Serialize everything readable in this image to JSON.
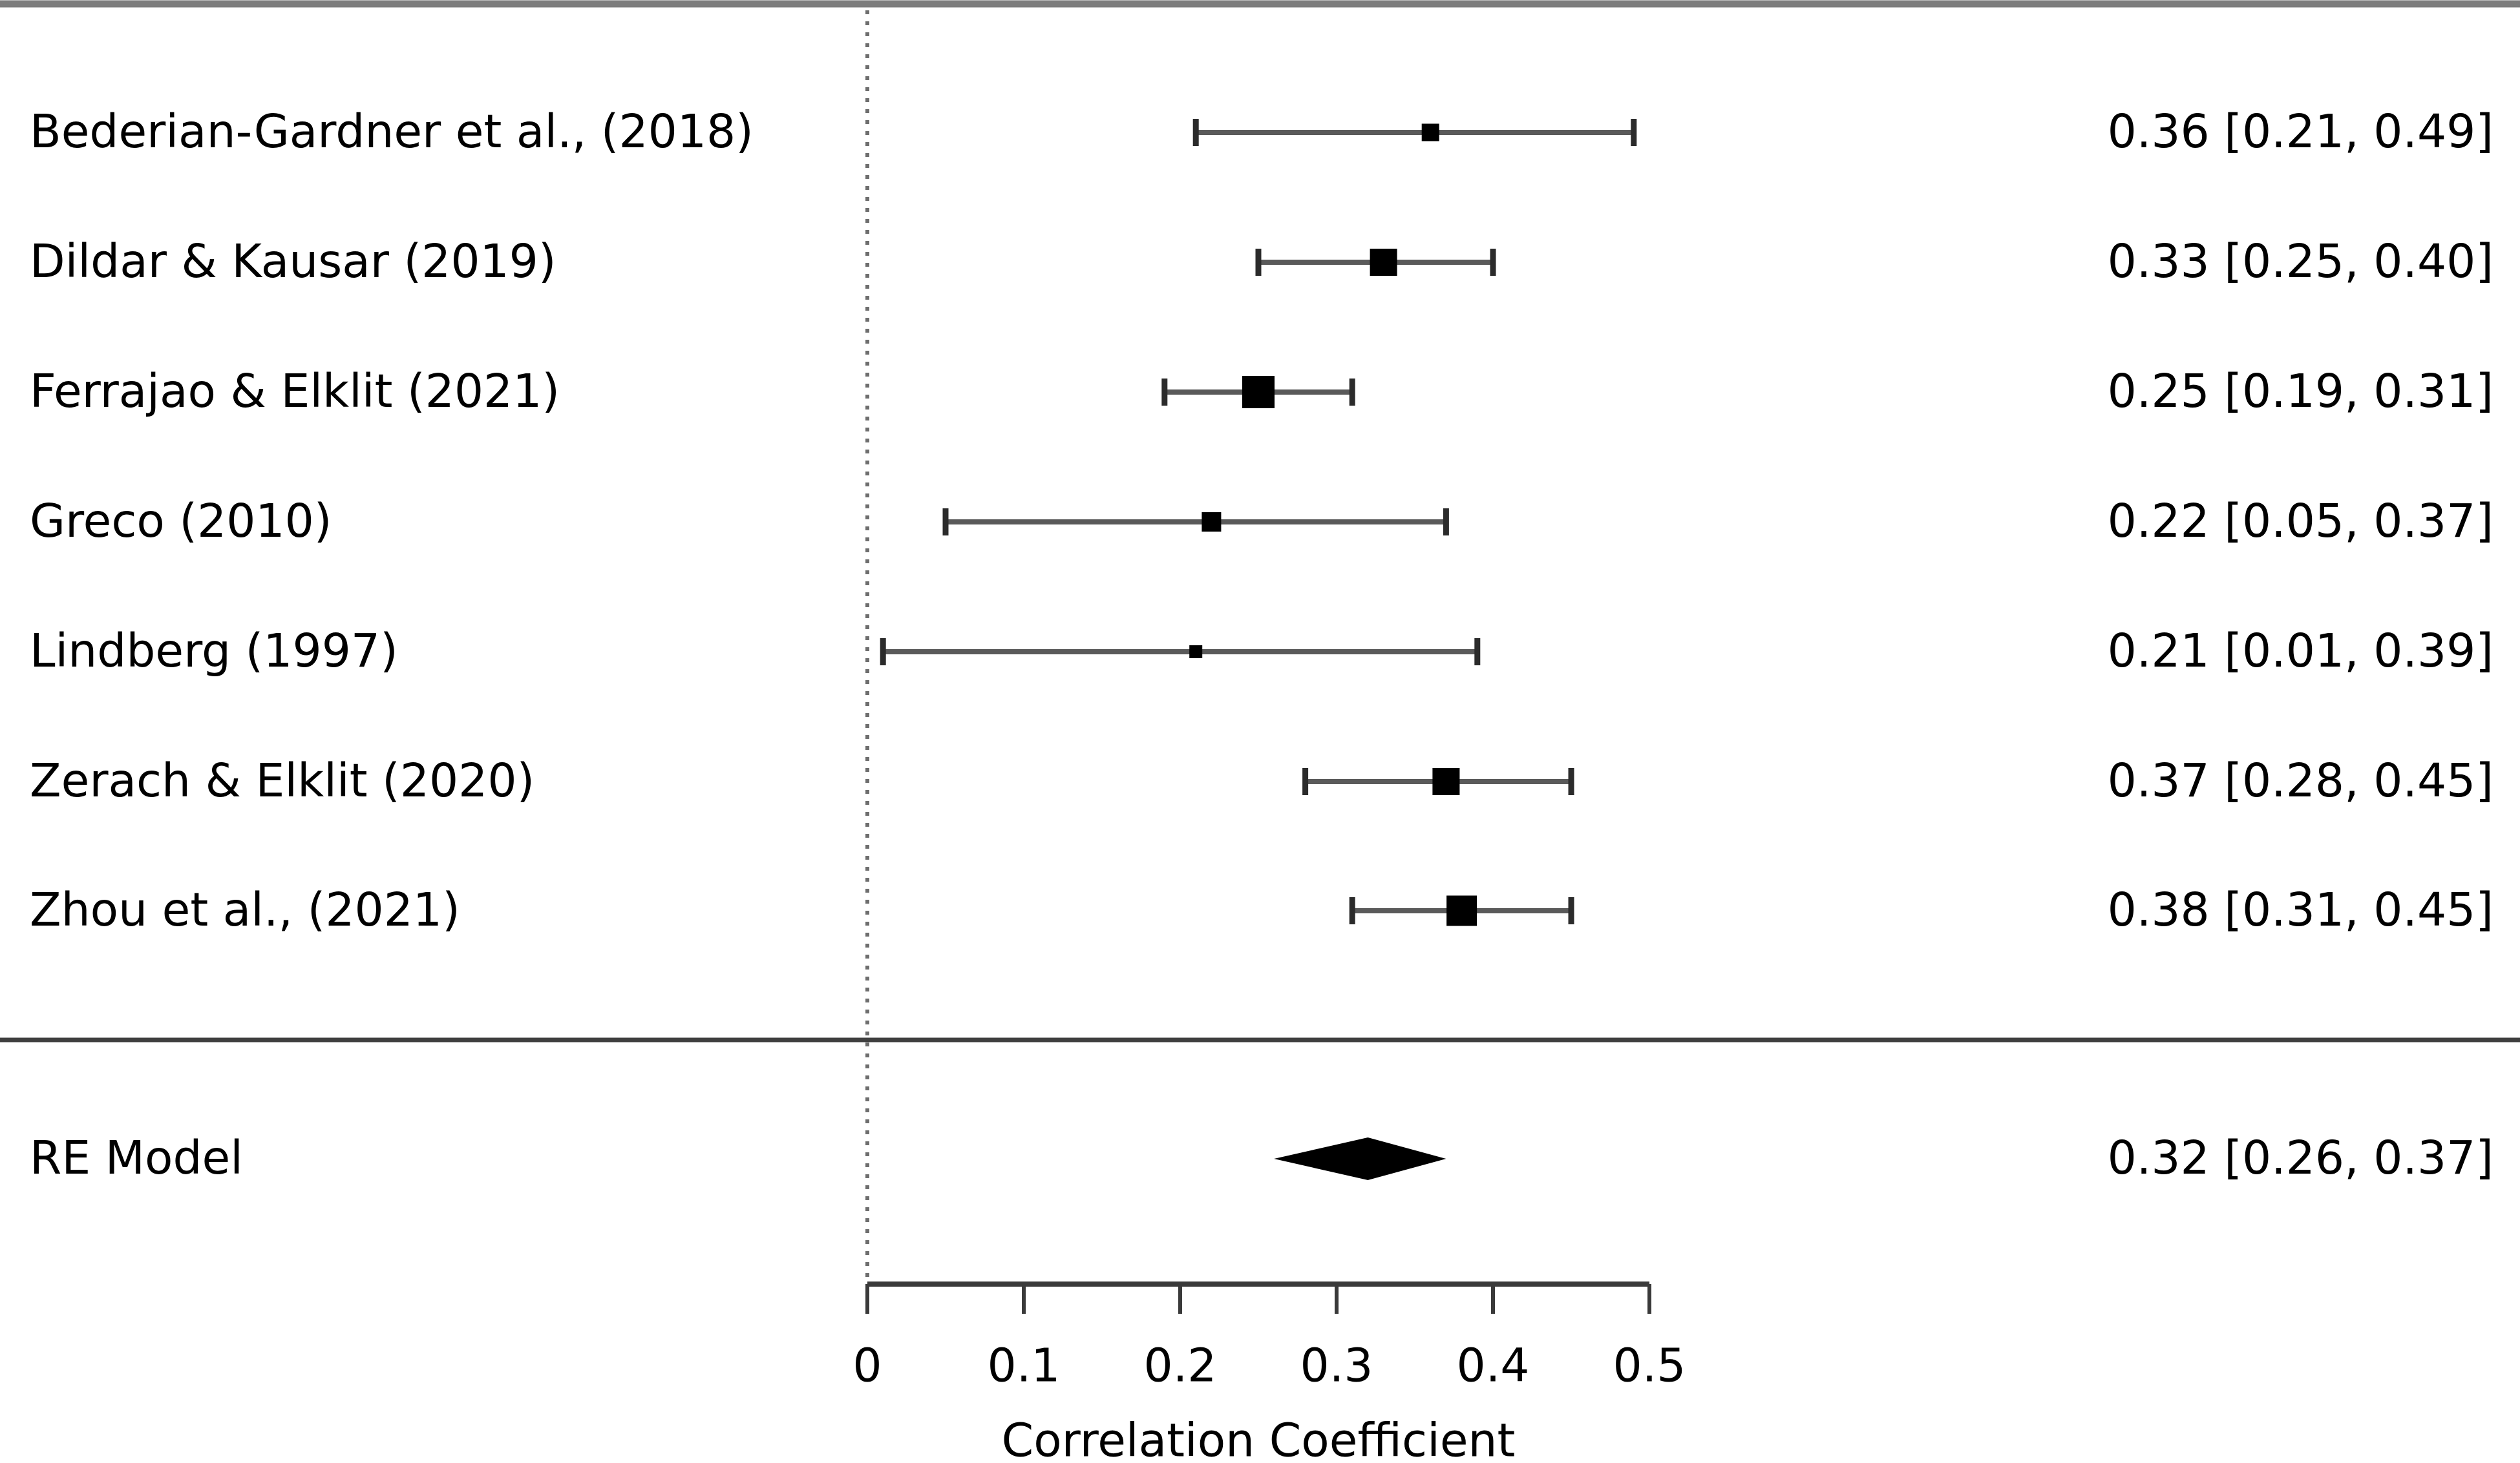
{
  "figure": {
    "kind": "forest-plot"
  },
  "chart_data": {
    "type": "forest",
    "title": "",
    "xlabel": "Correlation Coefficient",
    "x_axis": {
      "min": 0,
      "max": 0.5,
      "ticks": [
        0,
        0.1,
        0.2,
        0.3,
        0.4,
        0.5
      ],
      "tick_labels": [
        "0",
        "0.1",
        "0.2",
        "0.3",
        "0.4",
        "0.5"
      ],
      "zero_reference_line": 0,
      "grid": false
    },
    "studies": [
      {
        "label": "Bederian-Gardner et al., (2018)",
        "estimate": 0.36,
        "ci_lower": 0.21,
        "ci_upper": 0.49,
        "annotation": "0.36 [0.21, 0.49]",
        "marker_px": 27
      },
      {
        "label": "Dildar & Kausar (2019)",
        "estimate": 0.33,
        "ci_lower": 0.25,
        "ci_upper": 0.4,
        "annotation": "0.33 [0.25, 0.40]",
        "marker_px": 42
      },
      {
        "label": "Ferrajao & Elklit (2021)",
        "estimate": 0.25,
        "ci_lower": 0.19,
        "ci_upper": 0.31,
        "annotation": "0.25 [0.19, 0.31]",
        "marker_px": 50
      },
      {
        "label": "Greco (2010)",
        "estimate": 0.22,
        "ci_lower": 0.05,
        "ci_upper": 0.37,
        "annotation": "0.22 [0.05, 0.37]",
        "marker_px": 30
      },
      {
        "label": "Lindberg (1997)",
        "estimate": 0.21,
        "ci_lower": 0.01,
        "ci_upper": 0.39,
        "annotation": "0.21 [0.01, 0.39]",
        "marker_px": 20
      },
      {
        "label": "Zerach & Elklit (2020)",
        "estimate": 0.37,
        "ci_lower": 0.28,
        "ci_upper": 0.45,
        "annotation": "0.37 [0.28, 0.45]",
        "marker_px": 42
      },
      {
        "label": "Zhou et al., (2021)",
        "estimate": 0.38,
        "ci_lower": 0.31,
        "ci_upper": 0.45,
        "annotation": "0.38 [0.31, 0.45]",
        "marker_px": 47
      }
    ],
    "summary": {
      "label": "RE Model",
      "estimate": 0.32,
      "ci_lower": 0.26,
      "ci_upper": 0.37,
      "annotation": "0.32 [0.26, 0.37]"
    },
    "colors": {
      "marker": "#000000",
      "ci_line": "#5a5a5a",
      "ci_cap": "#2b2b2b",
      "axis_line": "#3a3a3a",
      "rule_line": "#7d7d7d",
      "separator_line": "#3f3f3f",
      "zero_line": "#6e6e6e",
      "text": "#000000",
      "background": "#ffffff"
    }
  }
}
